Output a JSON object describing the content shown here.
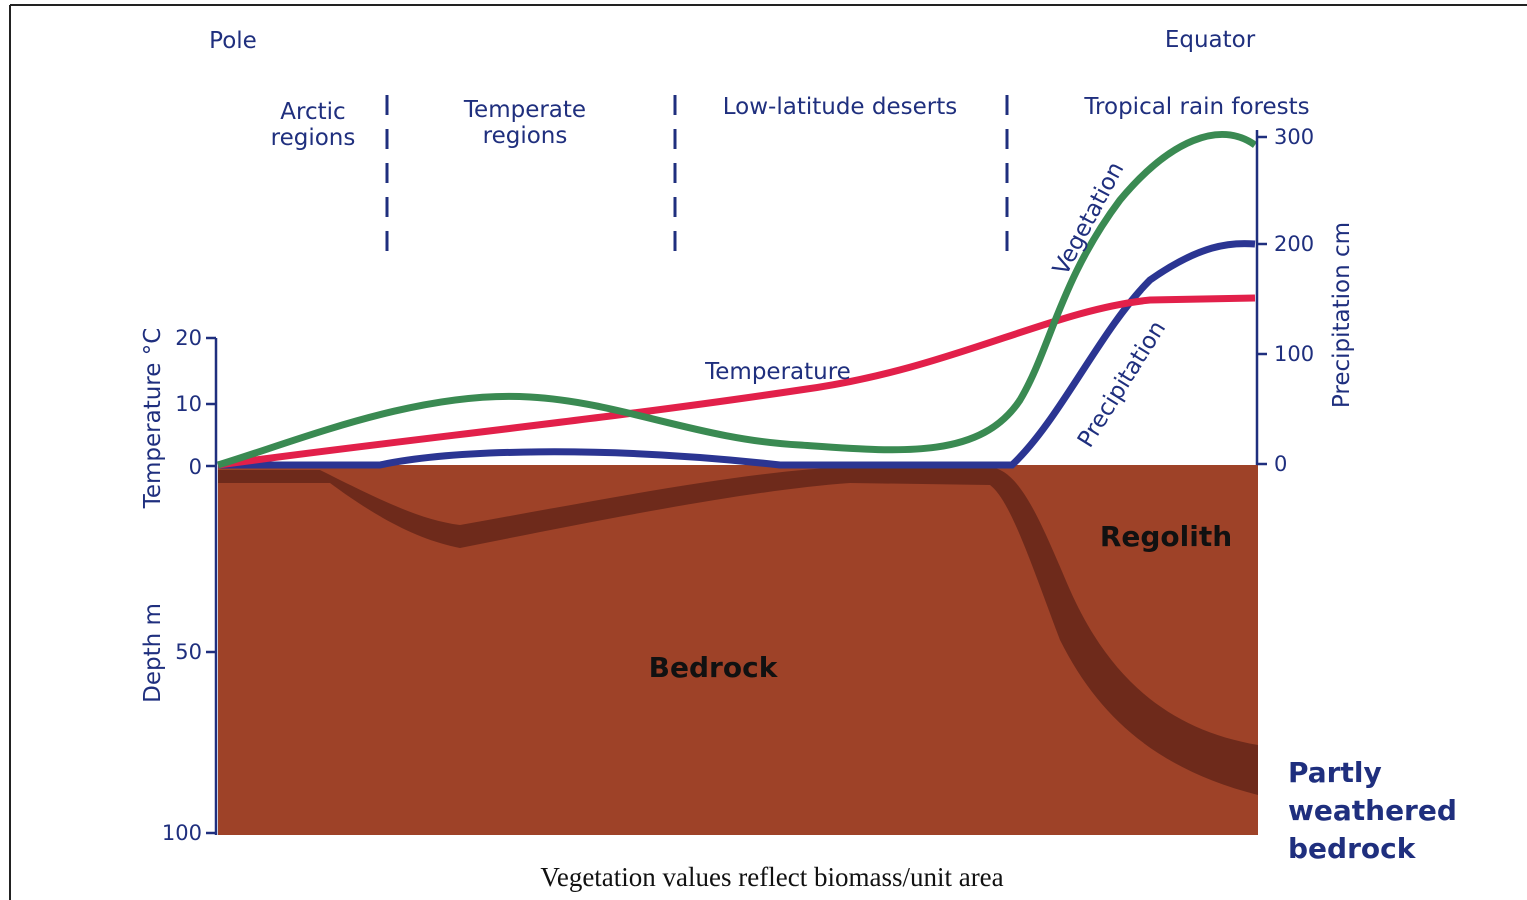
{
  "header": {
    "left": "Pole",
    "right": "Equator"
  },
  "zones": [
    [
      "Arctic",
      "regions"
    ],
    [
      "Temperate",
      "regions"
    ],
    [
      "Low-latitude deserts"
    ],
    [
      "Tropical rain forests"
    ]
  ],
  "axes": {
    "temperature": {
      "title": "Temperature °C",
      "ticks": [
        20,
        10,
        0
      ]
    },
    "depth": {
      "title": "Depth m",
      "ticks": [
        50,
        100
      ]
    },
    "precipitation": {
      "title": "Precipitation cm",
      "ticks": [
        300,
        200,
        100,
        0
      ]
    }
  },
  "curve_labels": {
    "vegetation": "Vegetation",
    "temperature": "Temperature",
    "precipitation": "Precipitation"
  },
  "layers": {
    "regolith": "Regolith",
    "bedrock": "Bedrock",
    "weathered": [
      "Partly",
      "weathered",
      "bedrock"
    ]
  },
  "caption": "Vegetation values reflect biomass/unit area"
}
